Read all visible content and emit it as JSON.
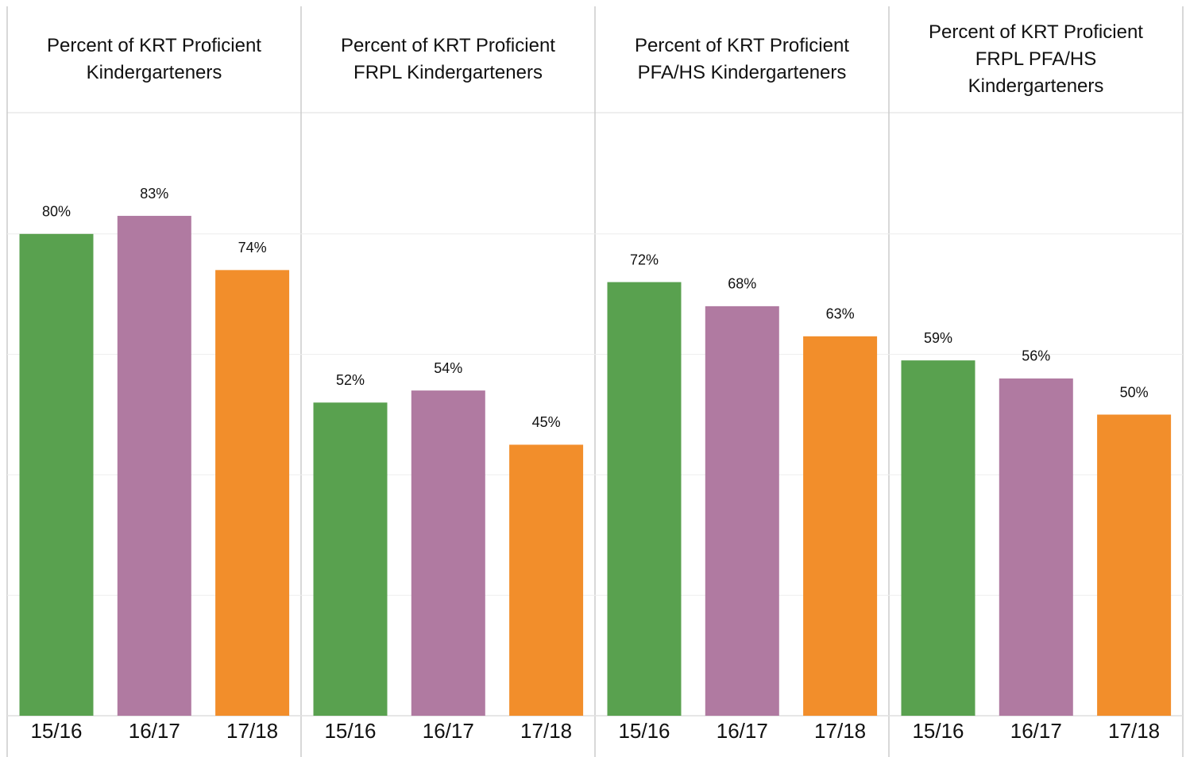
{
  "chart_data": [
    {
      "type": "bar",
      "title": "Percent of KRT Proficient\nKindergarteners",
      "categories": [
        "15/16",
        "16/17",
        "17/18"
      ],
      "values": [
        80,
        83,
        74
      ],
      "value_labels": [
        "80%",
        "83%",
        "74%"
      ],
      "colors": [
        "#59a14f",
        "#b07aa1",
        "#f28e2b"
      ],
      "ylim": [
        0,
        100
      ],
      "yticks": [
        0,
        20,
        40,
        60,
        80
      ],
      "grid": true
    },
    {
      "type": "bar",
      "title": "Percent of KRT Proficient\nFRPL Kindergarteners",
      "categories": [
        "15/16",
        "16/17",
        "17/18"
      ],
      "values": [
        52,
        54,
        45
      ],
      "value_labels": [
        "52%",
        "54%",
        "45%"
      ],
      "colors": [
        "#59a14f",
        "#b07aa1",
        "#f28e2b"
      ],
      "ylim": [
        0,
        100
      ],
      "yticks": [
        0,
        20,
        40,
        60,
        80
      ],
      "grid": true
    },
    {
      "type": "bar",
      "title": "Percent of KRT Proficient\nPFA/HS Kindergarteners",
      "categories": [
        "15/16",
        "16/17",
        "17/18"
      ],
      "values": [
        72,
        68,
        63
      ],
      "value_labels": [
        "72%",
        "68%",
        "63%"
      ],
      "colors": [
        "#59a14f",
        "#b07aa1",
        "#f28e2b"
      ],
      "ylim": [
        0,
        100
      ],
      "yticks": [
        0,
        20,
        40,
        60,
        80
      ],
      "grid": true
    },
    {
      "type": "bar",
      "title": "Percent of KRT Proficient\nFRPL PFA/HS\nKindergarteners",
      "categories": [
        "15/16",
        "16/17",
        "17/18"
      ],
      "values": [
        59,
        56,
        50
      ],
      "value_labels": [
        "59%",
        "56%",
        "50%"
      ],
      "colors": [
        "#59a14f",
        "#b07aa1",
        "#f28e2b"
      ],
      "ylim": [
        0,
        100
      ],
      "yticks": [
        0,
        20,
        40,
        60,
        80
      ],
      "grid": true
    }
  ]
}
